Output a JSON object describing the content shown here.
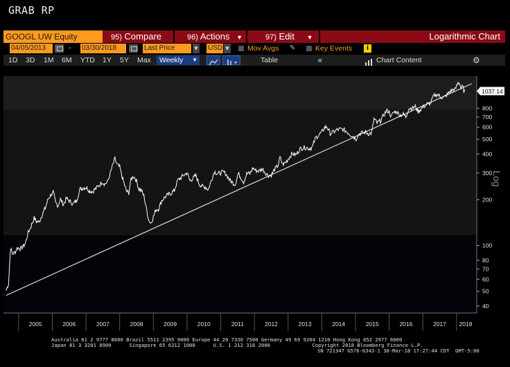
{
  "window": {
    "title": "GRAB RP"
  },
  "toolbar": {
    "ticker": "GOOGL UW Equity",
    "compare_num": "95)",
    "compare_label": "Compare",
    "actions_num": "96)",
    "actions_label": "Actions",
    "edit_num": "97)",
    "edit_label": "Edit",
    "chart_mode": "Logarithmic Chart"
  },
  "settings": {
    "start_date": "04/05/2013",
    "end_date": "03/30/2018",
    "date_separator": "-",
    "field": "Last Price",
    "currency": "USD",
    "mov_avgs": "Mov Avgs",
    "key_events": "Key Events",
    "info": "i"
  },
  "periods": {
    "items": [
      "1D",
      "3D",
      "1M",
      "6M",
      "YTD",
      "1Y",
      "5Y",
      "Max"
    ],
    "frequency": "Weekly",
    "table": "Table",
    "collapse": "«",
    "chart_content": "Chart Content"
  },
  "chart_data": {
    "type": "line",
    "title": "",
    "xlabel": "",
    "ylabel": "Log",
    "yscale": "log",
    "ylim": [
      36,
      1300
    ],
    "x_categories": [
      "2005",
      "2006",
      "2007",
      "2008",
      "2009",
      "2010",
      "2011",
      "2012",
      "2013",
      "2014",
      "2015",
      "2016",
      "2017",
      "2018"
    ],
    "y_ticks": [
      40,
      50,
      60,
      70,
      80,
      100,
      200,
      300,
      400,
      500,
      600,
      700,
      800
    ],
    "last_value": "1037.14",
    "grid": false,
    "series": [
      {
        "color": "#ffffff",
        "points": [
          [
            2004.63,
            50.5
          ],
          [
            2004.7,
            56
          ],
          [
            2004.76,
            96
          ],
          [
            2004.82,
            88
          ],
          [
            2004.9,
            91
          ],
          [
            2004.97,
            97
          ],
          [
            2005.06,
            95
          ],
          [
            2005.12,
            98
          ],
          [
            2005.2,
            103
          ],
          [
            2005.28,
            121
          ],
          [
            2005.37,
            134
          ],
          [
            2005.46,
            152
          ],
          [
            2005.53,
            144
          ],
          [
            2005.61,
            143
          ],
          [
            2005.7,
            160
          ],
          [
            2005.79,
            176
          ],
          [
            2005.88,
            203
          ],
          [
            2005.97,
            218
          ],
          [
            2006.03,
            224
          ],
          [
            2006.1,
            190
          ],
          [
            2006.17,
            183
          ],
          [
            2006.24,
            202
          ],
          [
            2006.33,
            186
          ],
          [
            2006.42,
            204
          ],
          [
            2006.52,
            196
          ],
          [
            2006.61,
            187
          ],
          [
            2006.72,
            198
          ],
          [
            2006.82,
            235
          ],
          [
            2006.92,
            240
          ],
          [
            2007.01,
            241
          ],
          [
            2007.1,
            229
          ],
          [
            2007.2,
            227
          ],
          [
            2007.3,
            238
          ],
          [
            2007.4,
            250
          ],
          [
            2007.48,
            262
          ],
          [
            2007.56,
            254
          ],
          [
            2007.64,
            262
          ],
          [
            2007.72,
            298
          ],
          [
            2007.8,
            341
          ],
          [
            2007.86,
            372
          ],
          [
            2007.92,
            340
          ],
          [
            2008.0,
            328
          ],
          [
            2008.06,
            290
          ],
          [
            2008.13,
            256
          ],
          [
            2008.2,
            228
          ],
          [
            2008.27,
            222
          ],
          [
            2008.34,
            275
          ],
          [
            2008.42,
            286
          ],
          [
            2008.5,
            266
          ],
          [
            2008.57,
            236
          ],
          [
            2008.64,
            230
          ],
          [
            2008.72,
            212
          ],
          [
            2008.79,
            176
          ],
          [
            2008.86,
            148
          ],
          [
            2008.92,
            140
          ],
          [
            2009.0,
            154
          ],
          [
            2009.07,
            172
          ],
          [
            2009.15,
            174
          ],
          [
            2009.25,
            197
          ],
          [
            2009.34,
            208
          ],
          [
            2009.44,
            216
          ],
          [
            2009.53,
            221
          ],
          [
            2009.62,
            230
          ],
          [
            2009.72,
            268
          ],
          [
            2009.82,
            280
          ],
          [
            2009.92,
            292
          ],
          [
            2010.0,
            302
          ],
          [
            2010.08,
            268
          ],
          [
            2010.17,
            275
          ],
          [
            2010.26,
            290
          ],
          [
            2010.36,
            254
          ],
          [
            2010.45,
            245
          ],
          [
            2010.54,
            243
          ],
          [
            2010.63,
            233
          ],
          [
            2010.72,
            268
          ],
          [
            2010.81,
            307
          ],
          [
            2010.91,
            297
          ],
          [
            2011.0,
            300
          ],
          [
            2011.08,
            305
          ],
          [
            2011.16,
            295
          ],
          [
            2011.26,
            271
          ],
          [
            2011.35,
            260
          ],
          [
            2011.43,
            252
          ],
          [
            2011.52,
            298
          ],
          [
            2011.6,
            280
          ],
          [
            2011.68,
            262
          ],
          [
            2011.77,
            296
          ],
          [
            2011.87,
            298
          ],
          [
            2011.96,
            323
          ],
          [
            2012.04,
            311
          ],
          [
            2012.14,
            310
          ],
          [
            2012.24,
            320
          ],
          [
            2012.32,
            303
          ],
          [
            2012.4,
            290
          ],
          [
            2012.5,
            290
          ],
          [
            2012.6,
            317
          ],
          [
            2012.7,
            335
          ],
          [
            2012.76,
            380
          ],
          [
            2012.84,
            340
          ],
          [
            2012.94,
            355
          ],
          [
            2013.03,
            379
          ],
          [
            2013.12,
            401
          ],
          [
            2013.24,
            396
          ],
          [
            2013.35,
            432
          ],
          [
            2013.44,
            439
          ],
          [
            2013.54,
            442
          ],
          [
            2013.63,
            434
          ],
          [
            2013.72,
            445
          ],
          [
            2013.82,
            513
          ],
          [
            2013.9,
            530
          ],
          [
            2014.0,
            556
          ],
          [
            2014.08,
            596
          ],
          [
            2014.15,
            606
          ],
          [
            2014.25,
            545
          ],
          [
            2014.35,
            558
          ],
          [
            2014.45,
            576
          ],
          [
            2014.55,
            582
          ],
          [
            2014.65,
            578
          ],
          [
            2014.75,
            560
          ],
          [
            2014.83,
            540
          ],
          [
            2014.92,
            523
          ],
          [
            2015.02,
            503
          ],
          [
            2015.1,
            543
          ],
          [
            2015.2,
            550
          ],
          [
            2015.3,
            556
          ],
          [
            2015.4,
            543
          ],
          [
            2015.48,
            550
          ],
          [
            2015.55,
            680
          ],
          [
            2015.64,
            640
          ],
          [
            2015.74,
            660
          ],
          [
            2015.84,
            720
          ],
          [
            2015.92,
            770
          ],
          [
            2016.0,
            760
          ],
          [
            2016.06,
            700
          ],
          [
            2016.12,
            750
          ],
          [
            2016.22,
            760
          ],
          [
            2016.32,
            720
          ],
          [
            2016.42,
            730
          ],
          [
            2016.5,
            700
          ],
          [
            2016.58,
            800
          ],
          [
            2016.68,
            800
          ],
          [
            2016.78,
            820
          ],
          [
            2016.86,
            760
          ],
          [
            2016.94,
            790
          ],
          [
            2017.02,
            820
          ],
          [
            2017.12,
            850
          ],
          [
            2017.22,
            860
          ],
          [
            2017.32,
            960
          ],
          [
            2017.42,
            990
          ],
          [
            2017.52,
            950
          ],
          [
            2017.62,
            940
          ],
          [
            2017.72,
            980
          ],
          [
            2017.82,
            1040
          ],
          [
            2017.9,
            1060
          ],
          [
            2017.96,
            1060
          ],
          [
            2018.04,
            1170
          ],
          [
            2018.09,
            1180
          ],
          [
            2018.13,
            1080
          ],
          [
            2018.18,
            1110
          ],
          [
            2018.22,
            1040
          ],
          [
            2018.24,
            1037.14
          ]
        ]
      }
    ],
    "trendline": {
      "color": "#d8d8d8",
      "points": [
        [
          2004.63,
          47
        ],
        [
          2018.45,
          1160
        ]
      ]
    }
  },
  "footer": {
    "line1": "Australia 61 2 9777 8600 Brazil 5511 2395 9000 Europe 44 20 7330 7500 Germany 49 69 9204 1210 Hong Kong 852 2977 6000",
    "line2": "Japan 81 3 3201 8900      Singapore 65 6212 1000      U.S. 1 212 318 2000              Copyright 2018 Bloomberg Finance L.P.",
    "line3": "SN 721347 G576-6343-1 30-Mar-18 17:27:44 CDT  GMT-5:00"
  },
  "colors": {
    "accent": "#ff9a1e",
    "menu_bar": "#8b0a16",
    "selected": "#1b3c80"
  }
}
